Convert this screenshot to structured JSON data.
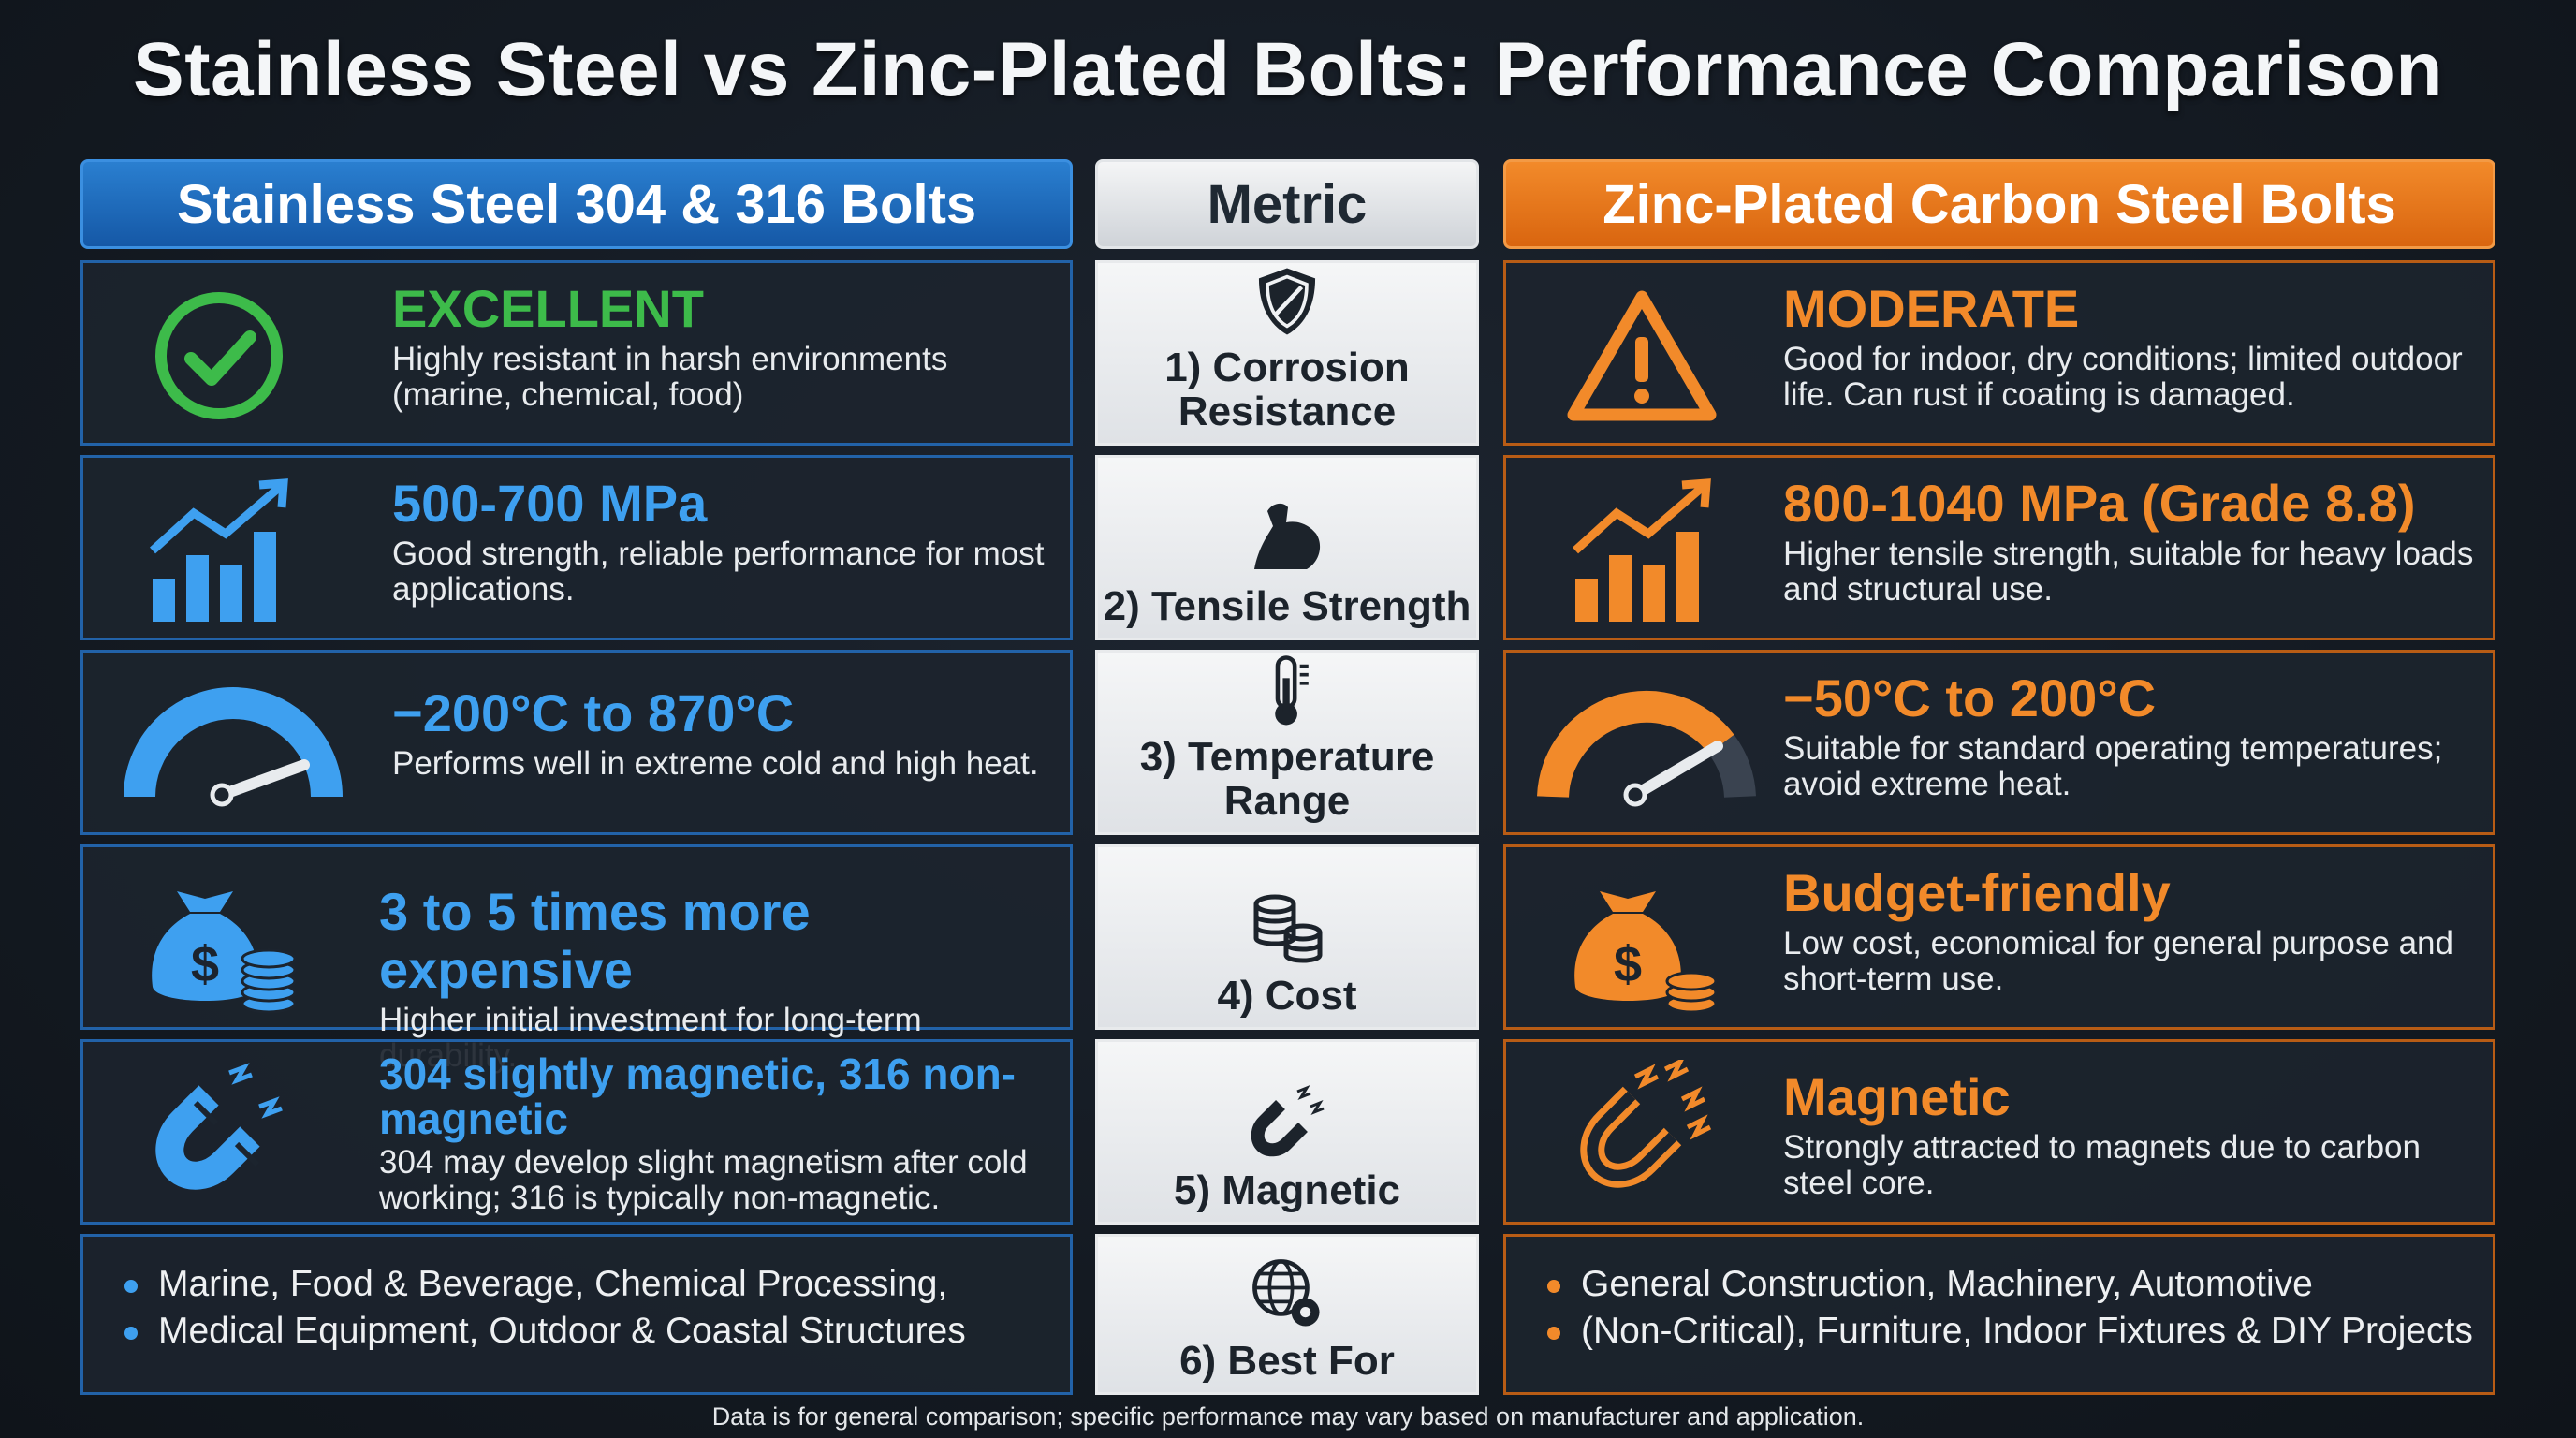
{
  "title": "Stainless Steel vs Zinc-Plated Bolts: Performance Comparison",
  "headers": {
    "left": "Stainless Steel 304 & 316 Bolts",
    "mid": "Metric",
    "right": "Zinc-Plated Carbon Steel Bolts"
  },
  "rows": [
    {
      "metric": "1) Corrosion Resistance",
      "metric_icon": "shield-icon",
      "left": {
        "value": "EXCELLENT",
        "desc": "Highly resistant in harsh environments (marine, chemical, food)",
        "icon": "checkmark-circle-icon"
      },
      "right": {
        "value": "MODERATE",
        "desc": "Good for indoor, dry conditions; limited outdoor life. Can rust if coating is damaged.",
        "icon": "warning-triangle-icon"
      }
    },
    {
      "metric": "2) Tensile Strength",
      "metric_icon": "flexed-arm-icon",
      "left": {
        "value": "500-700 MPa",
        "desc": "Good strength, reliable performance for most applications.",
        "icon": "bar-chart-up-icon"
      },
      "right": {
        "value": "800-1040 MPa (Grade 8.8)",
        "desc": "Higher tensile strength, suitable for heavy loads and structural use.",
        "icon": "bar-chart-up-icon"
      }
    },
    {
      "metric": "3) Temperature Range",
      "metric_icon": "thermometer-icon",
      "left": {
        "value": "−200°C to 870°C",
        "desc": "Performs well in extreme cold and high heat.",
        "icon": "gauge-icon"
      },
      "right": {
        "value": "−50°C to 200°C",
        "desc": "Suitable for standard operating temperatures; avoid extreme heat.",
        "icon": "gauge-icon"
      }
    },
    {
      "metric": "4) Cost",
      "metric_icon": "coin-stack-icon",
      "left": {
        "value": "3 to 5 times more expensive",
        "desc": "Higher initial investment for long-term durability.",
        "icon": "money-bag-icon"
      },
      "right": {
        "value": "Budget-friendly",
        "desc": "Low cost, economical for general purpose and short-term use.",
        "icon": "money-bag-icon"
      }
    },
    {
      "metric": "5) Magnetic",
      "metric_icon": "magnet-icon",
      "left": {
        "value": "304 slightly magnetic, 316 non-magnetic",
        "desc": "304 may develop slight magnetism after cold working; 316 is typically non-magnetic.",
        "icon": "magnet-icon"
      },
      "right": {
        "value": "Magnetic",
        "desc": "Strongly attracted to magnets due to carbon steel core.",
        "icon": "magnet-icon"
      }
    },
    {
      "metric": "6) Best For",
      "metric_icon": "globe-gear-icon",
      "left": {
        "bullets": [
          "Marine, Food & Beverage, Chemical Processing,",
          "Medical Equipment, Outdoor & Coastal Structures"
        ]
      },
      "right": {
        "bullets": [
          "General Construction, Machinery, Automotive",
          "(Non-Critical), Furniture, Indoor Fixtures & DIY Projects"
        ]
      }
    }
  ],
  "footer": "Data is for general comparison; specific performance may vary based on manufacturer and application.",
  "colors": {
    "stainless": "#3ea0f0",
    "zinc": "#f28a2a",
    "excellent": "#3dbb4a"
  }
}
